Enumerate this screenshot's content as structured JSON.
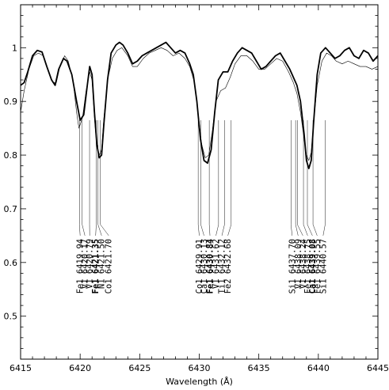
{
  "chart_data": {
    "type": "line",
    "title": "",
    "xlabel": "Wavelength (Å)",
    "ylabel": "",
    "xlim": [
      6415,
      6445
    ],
    "ylim": [
      0.42,
      1.08
    ],
    "xticks": [
      6415,
      6420,
      6425,
      6430,
      6435,
      6440,
      6445
    ],
    "xtick_labels": [
      "6415",
      "6420",
      "6425",
      "6430",
      "6435",
      "6440",
      "6445"
    ],
    "yticks": [
      0.5,
      0.6,
      0.7,
      0.8,
      0.9,
      1.0
    ],
    "ytick_labels": [
      "0.5",
      "0.6",
      "0.7",
      "0.8",
      "0.9",
      "1"
    ],
    "grid": false,
    "series": [
      {
        "style": "thick",
        "points": [
          [
            6415.0,
            0.93
          ],
          [
            6415.3,
            0.935
          ],
          [
            6415.6,
            0.955
          ],
          [
            6416.0,
            0.985
          ],
          [
            6416.4,
            0.995
          ],
          [
            6416.8,
            0.992
          ],
          [
            6417.2,
            0.965
          ],
          [
            6417.6,
            0.94
          ],
          [
            6417.9,
            0.93
          ],
          [
            6418.2,
            0.96
          ],
          [
            6418.6,
            0.98
          ],
          [
            6418.9,
            0.975
          ],
          [
            6419.3,
            0.95
          ],
          [
            6419.7,
            0.9
          ],
          [
            6420.0,
            0.865
          ],
          [
            6420.3,
            0.875
          ],
          [
            6420.6,
            0.93
          ],
          [
            6420.8,
            0.965
          ],
          [
            6421.0,
            0.95
          ],
          [
            6421.2,
            0.88
          ],
          [
            6421.4,
            0.82
          ],
          [
            6421.6,
            0.795
          ],
          [
            6421.8,
            0.8
          ],
          [
            6422.0,
            0.86
          ],
          [
            6422.3,
            0.94
          ],
          [
            6422.6,
            0.99
          ],
          [
            6423.0,
            1.005
          ],
          [
            6423.3,
            1.01
          ],
          [
            6423.6,
            1.005
          ],
          [
            6424.0,
            0.99
          ],
          [
            6424.4,
            0.97
          ],
          [
            6424.8,
            0.975
          ],
          [
            6425.2,
            0.985
          ],
          [
            6425.6,
            0.99
          ],
          [
            6426.0,
            0.995
          ],
          [
            6426.4,
            1.0
          ],
          [
            6426.8,
            1.005
          ],
          [
            6427.2,
            1.01
          ],
          [
            6427.6,
            1.0
          ],
          [
            6428.0,
            0.99
          ],
          [
            6428.4,
            0.995
          ],
          [
            6428.8,
            0.99
          ],
          [
            6429.2,
            0.97
          ],
          [
            6429.5,
            0.95
          ],
          [
            6429.8,
            0.9
          ],
          [
            6430.1,
            0.83
          ],
          [
            6430.4,
            0.79
          ],
          [
            6430.7,
            0.785
          ],
          [
            6431.0,
            0.81
          ],
          [
            6431.3,
            0.88
          ],
          [
            6431.6,
            0.94
          ],
          [
            6432.0,
            0.955
          ],
          [
            6432.4,
            0.955
          ],
          [
            6432.8,
            0.975
          ],
          [
            6433.2,
            0.99
          ],
          [
            6433.6,
            1.0
          ],
          [
            6434.0,
            0.995
          ],
          [
            6434.4,
            0.99
          ],
          [
            6434.8,
            0.975
          ],
          [
            6435.2,
            0.96
          ],
          [
            6435.6,
            0.965
          ],
          [
            6436.0,
            0.975
          ],
          [
            6436.4,
            0.985
          ],
          [
            6436.8,
            0.99
          ],
          [
            6437.2,
            0.975
          ],
          [
            6437.6,
            0.96
          ],
          [
            6437.9,
            0.945
          ],
          [
            6438.2,
            0.93
          ],
          [
            6438.5,
            0.9
          ],
          [
            6438.8,
            0.84
          ],
          [
            6439.0,
            0.79
          ],
          [
            6439.2,
            0.775
          ],
          [
            6439.4,
            0.79
          ],
          [
            6439.6,
            0.86
          ],
          [
            6439.9,
            0.95
          ],
          [
            6440.2,
            0.99
          ],
          [
            6440.6,
            1.0
          ],
          [
            6441.0,
            0.99
          ],
          [
            6441.4,
            0.98
          ],
          [
            6441.8,
            0.985
          ],
          [
            6442.2,
            0.995
          ],
          [
            6442.6,
            1.0
          ],
          [
            6443.0,
            0.985
          ],
          [
            6443.4,
            0.98
          ],
          [
            6443.8,
            0.995
          ],
          [
            6444.2,
            0.99
          ],
          [
            6444.6,
            0.975
          ],
          [
            6445.0,
            0.985
          ]
        ]
      },
      {
        "style": "thin",
        "points": [
          [
            6415.0,
            0.88
          ],
          [
            6415.3,
            0.92
          ],
          [
            6415.7,
            0.96
          ],
          [
            6416.1,
            0.985
          ],
          [
            6416.5,
            0.99
          ],
          [
            6416.9,
            0.985
          ],
          [
            6417.3,
            0.96
          ],
          [
            6417.7,
            0.935
          ],
          [
            6418.0,
            0.935
          ],
          [
            6418.3,
            0.965
          ],
          [
            6418.7,
            0.985
          ],
          [
            6419.0,
            0.975
          ],
          [
            6419.4,
            0.94
          ],
          [
            6419.7,
            0.88
          ],
          [
            6419.9,
            0.85
          ],
          [
            6420.2,
            0.87
          ],
          [
            6420.5,
            0.92
          ],
          [
            6420.8,
            0.955
          ],
          [
            6421.0,
            0.94
          ],
          [
            6421.2,
            0.87
          ],
          [
            6421.4,
            0.815
          ],
          [
            6421.6,
            0.8
          ],
          [
            6421.8,
            0.81
          ],
          [
            6422.0,
            0.87
          ],
          [
            6422.3,
            0.94
          ],
          [
            6422.7,
            0.98
          ],
          [
            6423.1,
            0.995
          ],
          [
            6423.5,
            1.0
          ],
          [
            6424.0,
            0.985
          ],
          [
            6424.4,
            0.965
          ],
          [
            6424.8,
            0.965
          ],
          [
            6425.3,
            0.98
          ],
          [
            6425.8,
            0.99
          ],
          [
            6426.3,
            0.995
          ],
          [
            6426.8,
            1.0
          ],
          [
            6427.3,
            0.995
          ],
          [
            6427.8,
            0.985
          ],
          [
            6428.3,
            0.99
          ],
          [
            6428.8,
            0.98
          ],
          [
            6429.2,
            0.965
          ],
          [
            6429.6,
            0.935
          ],
          [
            6429.9,
            0.88
          ],
          [
            6430.2,
            0.82
          ],
          [
            6430.5,
            0.795
          ],
          [
            6430.8,
            0.8
          ],
          [
            6431.1,
            0.845
          ],
          [
            6431.4,
            0.9
          ],
          [
            6431.8,
            0.92
          ],
          [
            6432.2,
            0.925
          ],
          [
            6432.6,
            0.945
          ],
          [
            6433.0,
            0.97
          ],
          [
            6433.5,
            0.985
          ],
          [
            6434.0,
            0.985
          ],
          [
            6434.5,
            0.975
          ],
          [
            6435.0,
            0.96
          ],
          [
            6435.5,
            0.96
          ],
          [
            6436.0,
            0.97
          ],
          [
            6436.5,
            0.98
          ],
          [
            6437.0,
            0.975
          ],
          [
            6437.5,
            0.955
          ],
          [
            6437.9,
            0.935
          ],
          [
            6438.2,
            0.915
          ],
          [
            6438.5,
            0.88
          ],
          [
            6438.8,
            0.83
          ],
          [
            6439.0,
            0.8
          ],
          [
            6439.2,
            0.79
          ],
          [
            6439.4,
            0.805
          ],
          [
            6439.6,
            0.86
          ],
          [
            6439.9,
            0.93
          ],
          [
            6440.3,
            0.975
          ],
          [
            6440.7,
            0.99
          ],
          [
            6441.1,
            0.985
          ],
          [
            6441.5,
            0.975
          ],
          [
            6442.0,
            0.97
          ],
          [
            6442.5,
            0.975
          ],
          [
            6443.0,
            0.97
          ],
          [
            6443.5,
            0.965
          ],
          [
            6444.0,
            0.965
          ],
          [
            6444.5,
            0.96
          ],
          [
            6445.0,
            0.965
          ]
        ]
      }
    ],
    "line_marker_x_range": [
      0.65,
      0.865
    ],
    "annotations": [
      {
        "label": "Fe1  6419.94",
        "wavelength": 6419.94,
        "slot": 6420.0,
        "bold": false
      },
      {
        "label": "V1   6420.17",
        "wavelength": 6420.17,
        "slot": 6420.4,
        "bold": false
      },
      {
        "label": "V1   6420.79",
        "wavelength": 6420.79,
        "slot": 6420.8,
        "bold": false
      },
      {
        "label": "Fe1  6421.35",
        "wavelength": 6421.35,
        "slot": 6421.3,
        "bold": true
      },
      {
        "label": "N1   6421.50",
        "wavelength": 6421.5,
        "slot": 6421.8,
        "bold": false
      },
      {
        "label": "Co1  6421.70",
        "wavelength": 6421.7,
        "slot": 6422.4,
        "bold": false
      },
      {
        "label": "Co1  6429.91",
        "wavelength": 6429.91,
        "slot": 6430.0,
        "bold": false
      },
      {
        "label": "Ca1  6430.13",
        "wavelength": 6430.13,
        "slot": 6430.4,
        "bold": false
      },
      {
        "label": "Fe1  6430.84",
        "wavelength": 6430.84,
        "slot": 6430.9,
        "bold": true
      },
      {
        "label": "V1   6431.62",
        "wavelength": 6431.62,
        "slot": 6431.4,
        "bold": false
      },
      {
        "label": "Ti1  6432.12",
        "wavelength": 6432.12,
        "slot": 6431.9,
        "bold": false
      },
      {
        "label": "Fe2  6432.68",
        "wavelength": 6432.68,
        "slot": 6432.4,
        "bold": false
      },
      {
        "label": "Si1  6437.70",
        "wavelength": 6437.7,
        "slot": 6437.8,
        "bold": false
      },
      {
        "label": "V1   6438.09",
        "wavelength": 6438.09,
        "slot": 6438.3,
        "bold": false
      },
      {
        "label": "V1   6438.24",
        "wavelength": 6438.24,
        "slot": 6438.7,
        "bold": false
      },
      {
        "label": "Fe1  6438.75",
        "wavelength": 6438.75,
        "slot": 6439.1,
        "bold": false
      },
      {
        "label": "Ca1  6439.08",
        "wavelength": 6439.08,
        "slot": 6439.5,
        "bold": true
      },
      {
        "label": "Fe1  6439.55",
        "wavelength": 6439.55,
        "slot": 6439.9,
        "bold": false
      },
      {
        "label": "Si1  6440.57",
        "wavelength": 6440.57,
        "slot": 6440.4,
        "bold": false
      }
    ]
  }
}
